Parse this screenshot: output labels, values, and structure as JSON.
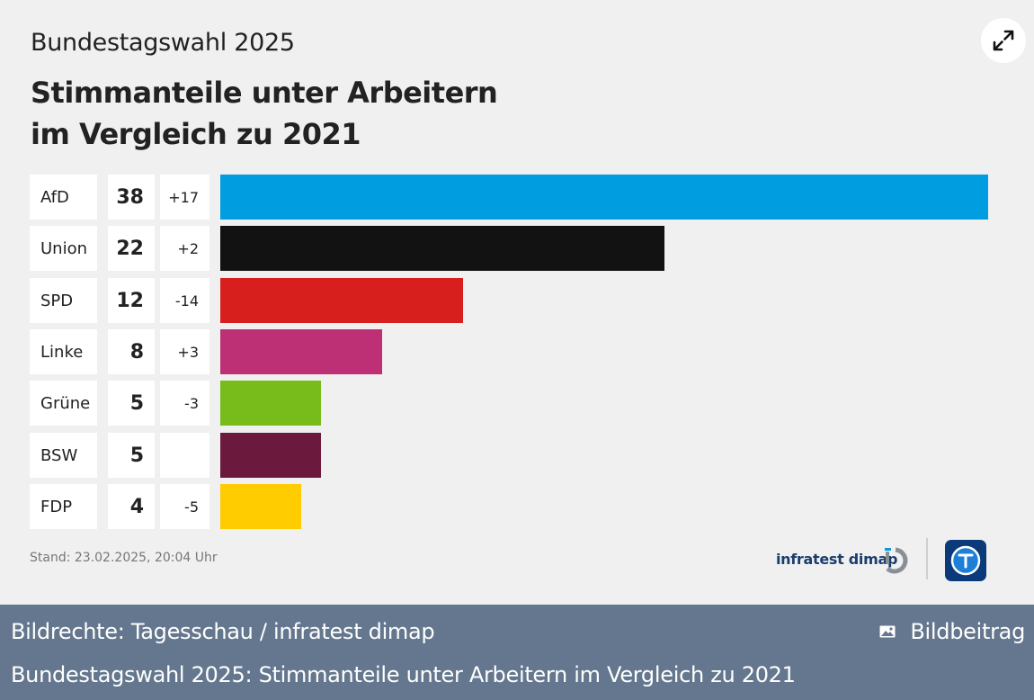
{
  "header": {
    "subtitle": "Bundestagswahl 2025",
    "title_line1": "Stimmanteile unter Arbeitern",
    "title_line2": "im Vergleich zu 2021"
  },
  "chart_data": {
    "type": "bar",
    "orientation": "horizontal",
    "title": "Stimmanteile unter Arbeitern im Vergleich zu 2021",
    "subtitle": "Bundestagswahl 2025",
    "categories": [
      "AfD",
      "Union",
      "SPD",
      "Linke",
      "Grüne",
      "BSW",
      "FDP"
    ],
    "values": [
      38,
      22,
      12,
      8,
      5,
      5,
      4
    ],
    "changes": [
      "+17",
      "+2",
      "-14",
      "+3",
      "-3",
      "",
      "-5"
    ],
    "colors": [
      "#009de0",
      "#121212",
      "#d71f1d",
      "#be3075",
      "#78bc1b",
      "#6b1a3e",
      "#ffcc00"
    ],
    "xlim": [
      0,
      38
    ],
    "xlabel": "",
    "ylabel": ""
  },
  "footer": {
    "stand": "Stand:  23.02.2025, 20:04 Uhr",
    "source_logo_text": "infratest dimap"
  },
  "caption_bar": {
    "credit": "Bildrechte: Tagesschau / infratest dimap",
    "type_label": "Bildbeitrag",
    "caption": "Bundestagswahl 2025: Stimmanteile unter Arbeitern im Vergleich zu 2021"
  },
  "icons": {
    "expand": "expand-icon",
    "image": "image-icon",
    "infratest": "infratest-logo",
    "tagesschau": "tagesschau-logo"
  }
}
